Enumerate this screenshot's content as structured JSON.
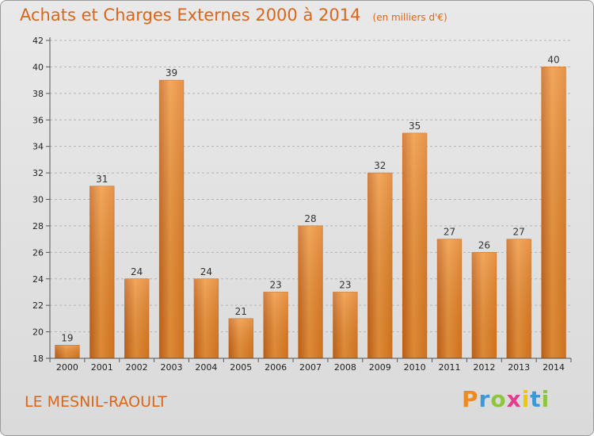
{
  "header": {
    "title": "Achats et Charges Externes 2000 à 2014",
    "unit": "(en milliers d'€)"
  },
  "footer": {
    "commune": "LE MESNIL-RAOULT",
    "logo_letters": [
      "P",
      "r",
      "o",
      "x",
      "i",
      "t",
      "i"
    ],
    "logo_colors": [
      "#f08a1c",
      "#3a9ad9",
      "#8cc63f",
      "#e63c8e",
      "#f5c400",
      "#3a9ad9",
      "#8cc63f"
    ]
  },
  "chart_data": {
    "type": "bar",
    "title": "Achats et Charges Externes 2000 à 2014",
    "subtitle": "(en milliers d'€)",
    "xlabel": "",
    "ylabel": "",
    "categories": [
      "2000",
      "2001",
      "2002",
      "2003",
      "2004",
      "2005",
      "2006",
      "2007",
      "2008",
      "2009",
      "2010",
      "2011",
      "2012",
      "2013",
      "2014"
    ],
    "values": [
      19,
      31,
      24,
      39,
      24,
      21,
      23,
      28,
      23,
      32,
      35,
      27,
      26,
      27,
      40
    ],
    "data_labels": [
      "19",
      "31",
      "24",
      "39",
      "24",
      "21",
      "23",
      "28",
      "23",
      "32",
      "35",
      "27",
      "26",
      "27",
      "40"
    ],
    "ylim": [
      18,
      42
    ],
    "yticks": [
      "18",
      "20",
      "22",
      "24",
      "26",
      "28",
      "30",
      "32",
      "34",
      "36",
      "38",
      "40",
      "42"
    ],
    "grid": true,
    "bar_color": "#e5832a"
  }
}
